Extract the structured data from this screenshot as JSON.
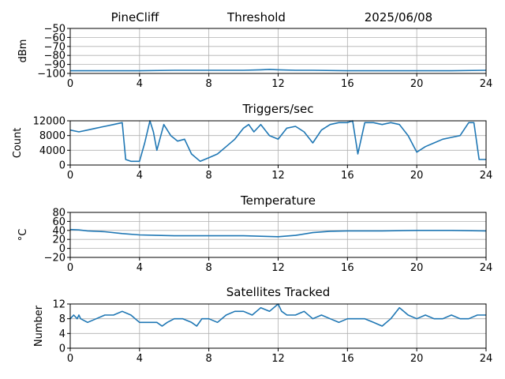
{
  "header": {
    "station": "PineCliff",
    "title": "Threshold",
    "date": "2025/06/08"
  },
  "colors": {
    "series": "#1f77b4",
    "grid": "#b0b0b0",
    "axis": "#000000"
  },
  "chart_data": [
    {
      "type": "line",
      "title": "",
      "xlabel": "",
      "ylabel": "dBm",
      "xlim": [
        0,
        24
      ],
      "ylim": [
        -100,
        -50
      ],
      "x_ticks": [
        0,
        4,
        8,
        12,
        16,
        20,
        24
      ],
      "x_tick_labels": [
        "0",
        "4",
        "8",
        "12",
        "16",
        "20",
        "24"
      ],
      "y_ticks": [
        -100,
        -90,
        -80,
        -70,
        -60,
        -50
      ],
      "y_tick_labels": [
        "−100",
        "−90",
        "−80",
        "−70",
        "−60",
        "−50"
      ],
      "grid": true,
      "series": [
        {
          "x": [
            0,
            2,
            4,
            6,
            8,
            10,
            11,
            11.5,
            12,
            13,
            14,
            16,
            18,
            20,
            22,
            24
          ],
          "values": [
            -97,
            -97,
            -97,
            -96.5,
            -96.5,
            -96.5,
            -96,
            -95.5,
            -96,
            -96.5,
            -96.5,
            -97,
            -97,
            -97,
            -97,
            -96.5
          ]
        }
      ]
    },
    {
      "type": "line",
      "title": "Triggers/sec",
      "xlabel": "",
      "ylabel": "Count",
      "xlim": [
        0,
        24
      ],
      "ylim": [
        0,
        12000
      ],
      "x_ticks": [
        0,
        4,
        8,
        12,
        16,
        20,
        24
      ],
      "x_tick_labels": [
        "0",
        "4",
        "8",
        "12",
        "16",
        "20",
        "24"
      ],
      "y_ticks": [
        0,
        4000,
        8000,
        12000
      ],
      "y_tick_labels": [
        "0",
        "4000",
        "8000",
        "12000"
      ],
      "grid": true,
      "series": [
        {
          "x": [
            0,
            0.5,
            1,
            1.5,
            2,
            2.5,
            3,
            3.2,
            3.5,
            4,
            4.3,
            4.6,
            4.8,
            5,
            5.4,
            5.8,
            6.2,
            6.6,
            7,
            7.5,
            8,
            8.5,
            9,
            9.5,
            10,
            10.3,
            10.6,
            11,
            11.5,
            12,
            12.5,
            13,
            13.5,
            14,
            14.5,
            15,
            15.5,
            16,
            16.3,
            16.6,
            17,
            17.5,
            18,
            18.5,
            19,
            19.5,
            20,
            20.5,
            21,
            21.5,
            22,
            22.5,
            23,
            23.3,
            23.6,
            24
          ],
          "values": [
            9500,
            9000,
            9500,
            10000,
            10500,
            11000,
            11500,
            1500,
            1000,
            1000,
            6000,
            12000,
            9000,
            4000,
            11000,
            8000,
            6500,
            7000,
            3000,
            1000,
            2000,
            3000,
            5000,
            7000,
            10000,
            11000,
            9000,
            11000,
            8000,
            7000,
            10000,
            10500,
            9000,
            6000,
            9500,
            11000,
            11500,
            11500,
            12000,
            3000,
            11500,
            11500,
            11000,
            11500,
            11000,
            8000,
            3500,
            5000,
            6000,
            7000,
            7500,
            8000,
            11500,
            11500,
            1500,
            1500
          ]
        }
      ]
    },
    {
      "type": "line",
      "title": "Temperature",
      "xlabel": "",
      "ylabel": "°C",
      "xlim": [
        0,
        24
      ],
      "ylim": [
        -20,
        80
      ],
      "x_ticks": [
        0,
        4,
        8,
        12,
        16,
        20,
        24
      ],
      "x_tick_labels": [
        "0",
        "4",
        "8",
        "12",
        "16",
        "20",
        "24"
      ],
      "y_ticks": [
        -20,
        0,
        20,
        40,
        60,
        80
      ],
      "y_tick_labels": [
        "−20",
        "0",
        "20",
        "40",
        "60",
        "80"
      ],
      "grid": true,
      "series": [
        {
          "x": [
            0,
            0.5,
            1,
            2,
            3,
            4,
            5,
            6,
            8,
            10,
            11,
            12,
            13,
            14,
            15,
            16,
            18,
            20,
            22,
            24
          ],
          "values": [
            42,
            41,
            39,
            37,
            33,
            30,
            29,
            28,
            28,
            28,
            27,
            26,
            29,
            35,
            38,
            39,
            39,
            40,
            40,
            39
          ]
        }
      ]
    },
    {
      "type": "line",
      "title": "Satellites Tracked",
      "xlabel": "",
      "ylabel": "Number",
      "xlim": [
        0,
        24
      ],
      "ylim": [
        0,
        12
      ],
      "x_ticks": [
        0,
        4,
        8,
        12,
        16,
        20,
        24
      ],
      "x_tick_labels": [
        "0",
        "4",
        "8",
        "12",
        "16",
        "20",
        "24"
      ],
      "y_ticks": [
        0,
        4,
        8,
        12
      ],
      "y_tick_labels": [
        "0",
        "4",
        "8",
        "12"
      ],
      "grid": true,
      "series": [
        {
          "x": [
            0,
            0.2,
            0.4,
            0.5,
            0.6,
            1,
            1.5,
            2,
            2.5,
            3,
            3.5,
            4,
            4.5,
            5,
            5.3,
            5.6,
            6,
            6.5,
            7,
            7.3,
            7.6,
            8,
            8.5,
            9,
            9.5,
            10,
            10.5,
            11,
            11.5,
            12,
            12.2,
            12.5,
            13,
            13.5,
            14,
            14.5,
            15,
            15.5,
            16,
            16.5,
            17,
            17.5,
            18,
            18.5,
            19,
            19.5,
            20,
            20.5,
            21,
            21.5,
            22,
            22.5,
            23,
            23.5,
            24
          ],
          "values": [
            8,
            9,
            8,
            9,
            8,
            7,
            8,
            9,
            9,
            10,
            9,
            7,
            7,
            7,
            6,
            7,
            8,
            8,
            7,
            6,
            8,
            8,
            7,
            9,
            10,
            10,
            9,
            11,
            10,
            12,
            10,
            9,
            9,
            10,
            8,
            9,
            8,
            7,
            8,
            8,
            8,
            7,
            6,
            8,
            11,
            9,
            8,
            9,
            8,
            8,
            9,
            8,
            8,
            9,
            9
          ]
        }
      ]
    }
  ]
}
